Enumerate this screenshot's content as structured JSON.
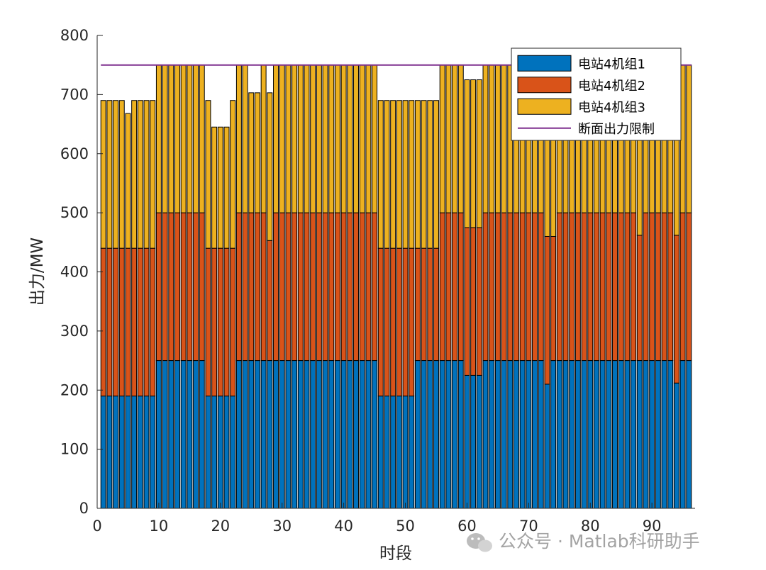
{
  "chart_data": {
    "type": "bar",
    "stacked": true,
    "xlabel": "时段",
    "ylabel": "出力/MW",
    "xlim": [
      0,
      97
    ],
    "ylim": [
      0,
      800
    ],
    "xticks": [
      0,
      10,
      20,
      30,
      40,
      50,
      60,
      70,
      80,
      90
    ],
    "yticks": [
      0,
      100,
      200,
      300,
      400,
      500,
      600,
      700,
      800
    ],
    "legend_position": "top-right",
    "x": [
      1,
      2,
      3,
      4,
      5,
      6,
      7,
      8,
      9,
      10,
      11,
      12,
      13,
      14,
      15,
      16,
      17,
      18,
      19,
      20,
      21,
      22,
      23,
      24,
      25,
      26,
      27,
      28,
      29,
      30,
      31,
      32,
      33,
      34,
      35,
      36,
      37,
      38,
      39,
      40,
      41,
      42,
      43,
      44,
      45,
      46,
      47,
      48,
      49,
      50,
      51,
      52,
      53,
      54,
      55,
      56,
      57,
      58,
      59,
      60,
      61,
      62,
      63,
      64,
      65,
      66,
      67,
      68,
      69,
      70,
      71,
      72,
      73,
      74,
      75,
      76,
      77,
      78,
      79,
      80,
      81,
      82,
      83,
      84,
      85,
      86,
      87,
      88,
      89,
      90,
      91,
      92,
      93,
      94,
      95,
      96
    ],
    "series": [
      {
        "name": "电站4机组1",
        "color": "#0072BD",
        "values": [
          190,
          190,
          190,
          190,
          190,
          190,
          190,
          190,
          190,
          250,
          250,
          250,
          250,
          250,
          250,
          250,
          250,
          190,
          190,
          190,
          190,
          190,
          250,
          250,
          250,
          250,
          250,
          250,
          250,
          250,
          250,
          250,
          250,
          250,
          250,
          250,
          250,
          250,
          250,
          250,
          250,
          250,
          250,
          250,
          250,
          190,
          190,
          190,
          190,
          190,
          190,
          250,
          250,
          250,
          250,
          250,
          250,
          250,
          250,
          225,
          225,
          225,
          250,
          250,
          250,
          250,
          250,
          250,
          250,
          250,
          250,
          250,
          210,
          250,
          250,
          250,
          250,
          250,
          250,
          250,
          250,
          250,
          250,
          250,
          250,
          250,
          250,
          250,
          250,
          250,
          250,
          250,
          250,
          212,
          250,
          250
        ]
      },
      {
        "name": "电站4机组2",
        "color": "#D95319",
        "values": [
          250,
          250,
          250,
          250,
          250,
          250,
          250,
          250,
          250,
          250,
          250,
          250,
          250,
          250,
          250,
          250,
          250,
          250,
          250,
          250,
          250,
          250,
          250,
          250,
          250,
          250,
          250,
          203,
          250,
          250,
          250,
          250,
          250,
          250,
          250,
          250,
          250,
          250,
          250,
          250,
          250,
          250,
          250,
          250,
          250,
          250,
          250,
          250,
          250,
          250,
          250,
          190,
          190,
          190,
          190,
          250,
          250,
          250,
          250,
          250,
          250,
          250,
          250,
          250,
          250,
          250,
          250,
          250,
          250,
          250,
          250,
          250,
          250,
          210,
          250,
          250,
          250,
          250,
          250,
          250,
          250,
          250,
          250,
          250,
          250,
          250,
          250,
          212,
          250,
          250,
          250,
          250,
          250,
          250,
          250,
          250
        ]
      },
      {
        "name": "电站4机组3",
        "color": "#EDB120",
        "values": [
          250,
          250,
          250,
          250,
          228,
          250,
          250,
          250,
          250,
          250,
          250,
          250,
          250,
          250,
          250,
          250,
          250,
          250,
          205,
          205,
          205,
          250,
          250,
          250,
          203,
          203,
          250,
          250,
          250,
          250,
          250,
          250,
          250,
          250,
          250,
          250,
          250,
          250,
          250,
          250,
          250,
          250,
          250,
          250,
          250,
          250,
          250,
          250,
          250,
          250,
          250,
          250,
          250,
          250,
          250,
          250,
          250,
          250,
          250,
          250,
          250,
          250,
          250,
          250,
          250,
          250,
          250,
          250,
          250,
          250,
          250,
          250,
          250,
          250,
          250,
          250,
          250,
          250,
          250,
          250,
          250,
          250,
          250,
          250,
          250,
          250,
          250,
          250,
          250,
          250,
          250,
          250,
          250,
          250,
          250,
          250
        ]
      }
    ],
    "reference_line": {
      "name": "断面出力限制",
      "value": 750,
      "color": "#7E2F8E"
    }
  },
  "watermark": {
    "text": "公众号 · Matlab科研助手",
    "icon": "wechat-icon"
  }
}
